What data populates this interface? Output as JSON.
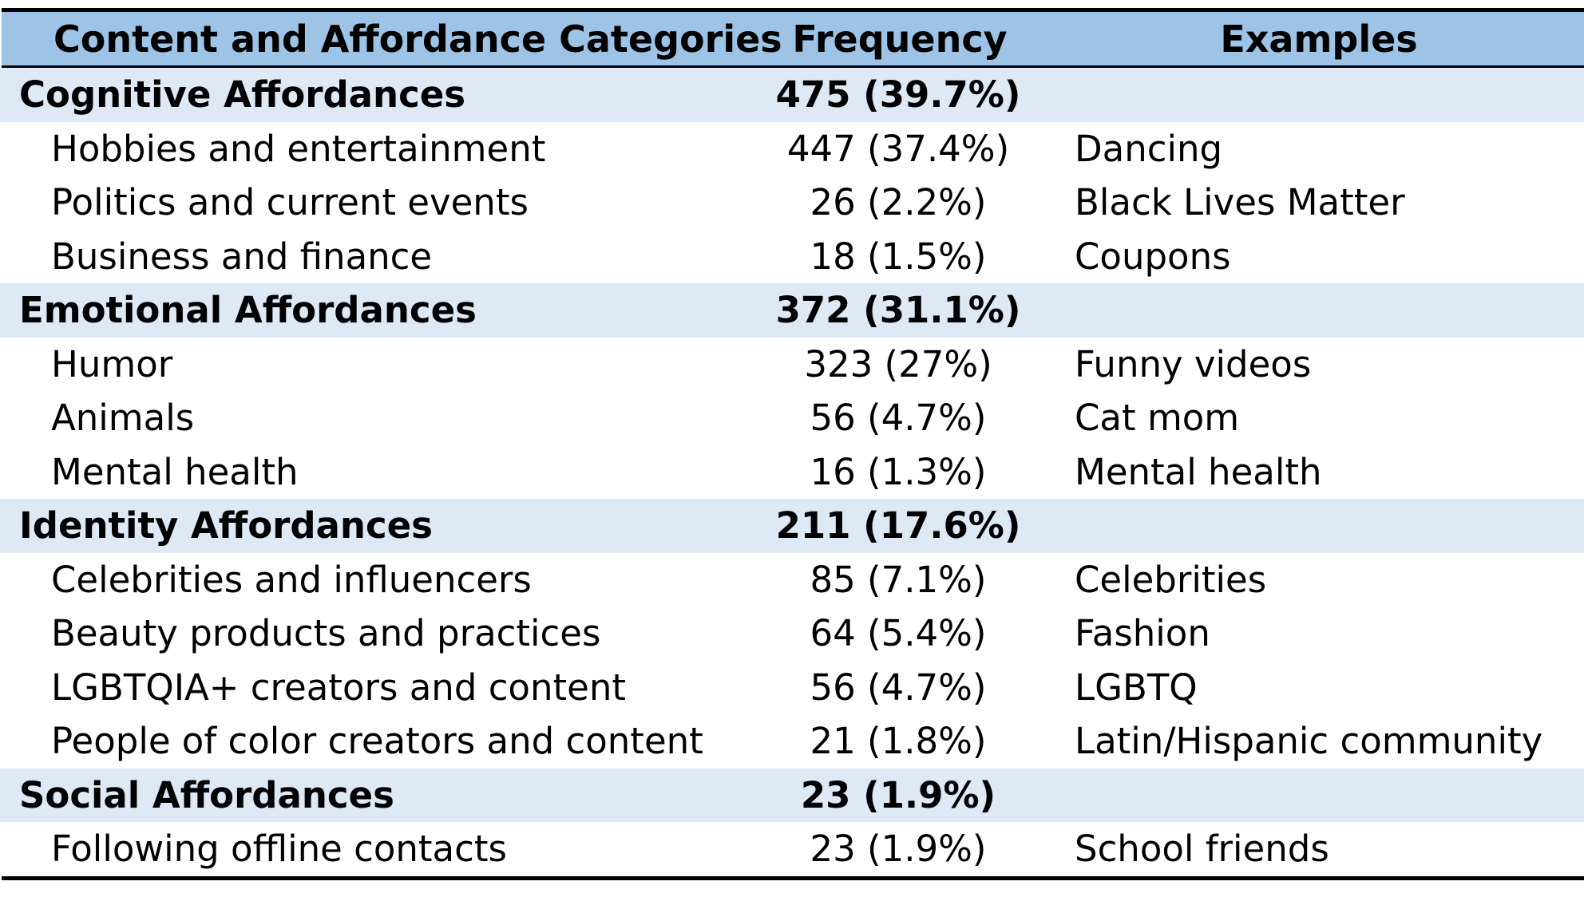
{
  "table": {
    "headers": {
      "category": "Content and Affordance Categories",
      "frequency": "Frequency",
      "examples": "Examples"
    },
    "sections": [
      {
        "name": "Cognitive Affordances",
        "frequency": "475 (39.7%)",
        "items": [
          {
            "name": "Hobbies and entertainment",
            "frequency": "447 (37.4%)",
            "example": "Dancing"
          },
          {
            "name": "Politics and current events",
            "frequency": "26 (2.2%)",
            "example": "Black Lives Matter"
          },
          {
            "name": "Business and finance",
            "frequency": "18 (1.5%)",
            "example": "Coupons"
          }
        ]
      },
      {
        "name": "Emotional Affordances",
        "frequency": "372 (31.1%)",
        "items": [
          {
            "name": "Humor",
            "frequency": "323 (27%)",
            "example": "Funny videos"
          },
          {
            "name": "Animals",
            "frequency": "56 (4.7%)",
            "example": "Cat mom"
          },
          {
            "name": "Mental health",
            "frequency": "16 (1.3%)",
            "example": "Mental health"
          }
        ]
      },
      {
        "name": "Identity Affordances",
        "frequency": "211 (17.6%)",
        "items": [
          {
            "name": "Celebrities and influencers",
            "frequency": "85 (7.1%)",
            "example": "Celebrities"
          },
          {
            "name": "Beauty products and practices",
            "frequency": "64 (5.4%)",
            "example": "Fashion"
          },
          {
            "name": "LGBTQIA+ creators and content",
            "frequency": "56 (4.7%)",
            "example": "LGBTQ"
          },
          {
            "name": "People of color creators and content",
            "frequency": "21 (1.8%)",
            "example": "Latin/Hispanic community"
          }
        ]
      },
      {
        "name": "Social Affordances",
        "frequency": "23 (1.9%)",
        "items": [
          {
            "name": "Following offline contacts",
            "frequency": "23 (1.9%)",
            "example": "School friends"
          }
        ]
      }
    ]
  },
  "colors": {
    "header_bg": "#9dc3e6",
    "category_bg": "#dee9f6",
    "rule": "#000000"
  }
}
